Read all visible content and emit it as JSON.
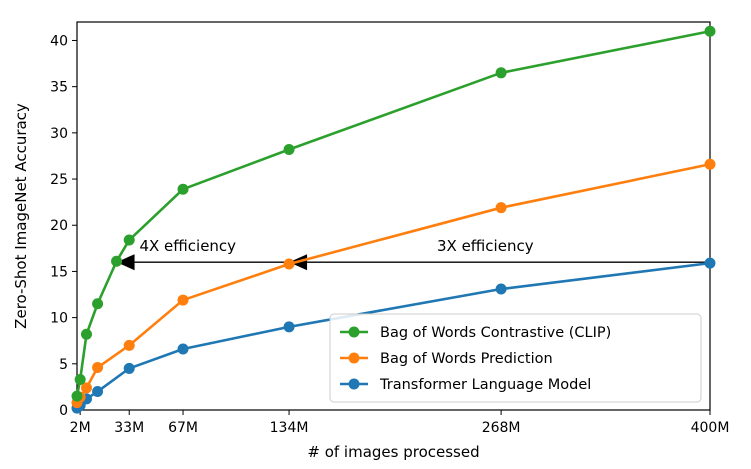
{
  "chart_data": {
    "type": "line",
    "xlabel": "# of images processed",
    "ylabel": "Zero-Shot ImageNet Accuracy",
    "xlim": [
      0,
      400
    ],
    "ylim": [
      0,
      42
    ],
    "x_ticks": [
      {
        "value": 2,
        "label": "2M"
      },
      {
        "value": 33,
        "label": "33M"
      },
      {
        "value": 67,
        "label": "67M"
      },
      {
        "value": 134,
        "label": "134M"
      },
      {
        "value": 268,
        "label": "268M"
      },
      {
        "value": 400,
        "label": "400M"
      }
    ],
    "y_ticks": [
      0,
      5,
      10,
      15,
      20,
      25,
      30,
      35,
      40
    ],
    "grid": false,
    "legend_position": "bottom-right",
    "series": [
      {
        "name": "Bag of Words Contrastive (CLIP)",
        "color": "#2ca02c",
        "x": [
          0,
          2,
          6,
          13,
          25,
          33,
          67,
          134,
          268,
          400
        ],
        "y": [
          1.5,
          3.3,
          8.2,
          11.5,
          16.1,
          18.4,
          23.9,
          28.2,
          36.5,
          41.0
        ]
      },
      {
        "name": "Bag of Words Prediction",
        "color": "#ff7f0e",
        "x": [
          0,
          2,
          6,
          13,
          33,
          67,
          134,
          268,
          400
        ],
        "y": [
          0.8,
          1.4,
          2.4,
          4.6,
          7.0,
          11.9,
          15.8,
          21.9,
          26.6
        ]
      },
      {
        "name": "Transformer Language Model",
        "color": "#1f77b4",
        "x": [
          0,
          2,
          6,
          13,
          33,
          67,
          134,
          268,
          400
        ],
        "y": [
          0.2,
          0.5,
          1.2,
          2.0,
          4.5,
          6.6,
          9.0,
          13.1,
          15.9
        ]
      }
    ],
    "annotations": [
      {
        "text": "4X efficiency",
        "from": [
          134,
          16
        ],
        "to": [
          25,
          16
        ],
        "label_at": [
          70,
          17.2
        ]
      },
      {
        "text": "3X efficiency",
        "from": [
          400,
          16
        ],
        "to": [
          134,
          16
        ],
        "label_at": [
          258,
          17.2
        ]
      }
    ]
  }
}
